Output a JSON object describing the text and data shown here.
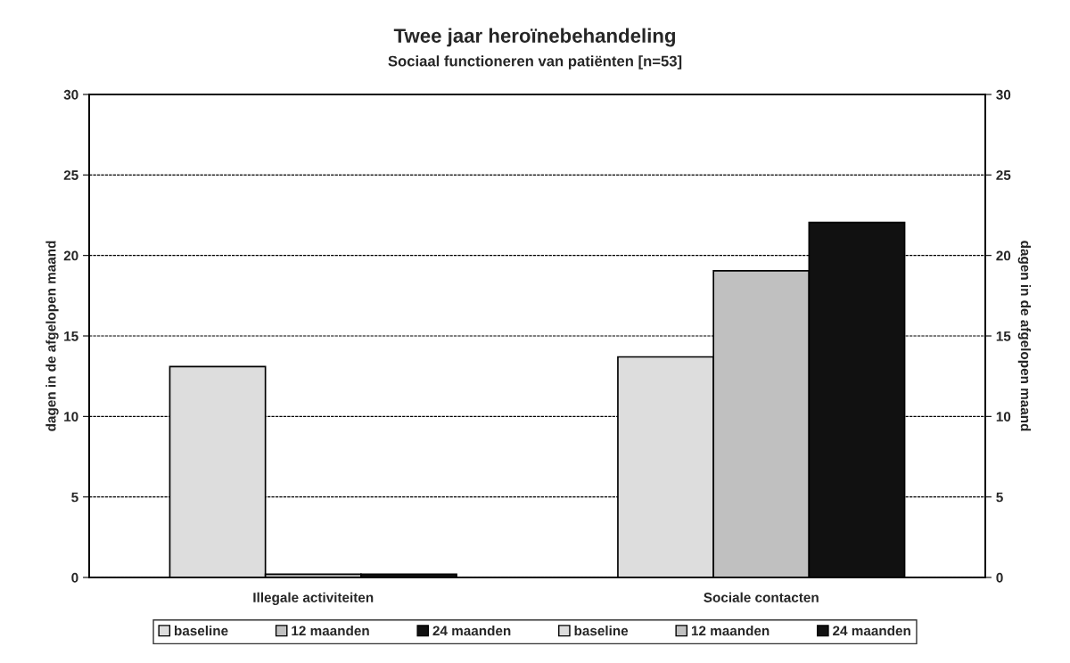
{
  "chart_data": {
    "type": "bar",
    "title": "Twee jaar heroïnebehandeling",
    "subtitle": "Sociaal functioneren van patiënten [n=53]",
    "ylabel": "dagen in de afgelopen maand",
    "y2label": "dagen in de afgelopen maand",
    "categories": [
      "Illegale activiteiten",
      "Sociale contacten"
    ],
    "series": [
      {
        "name": "baseline",
        "color": "#dddddd",
        "values": [
          13.1,
          null
        ]
      },
      {
        "name": "12 maanden",
        "color": "#c0c0c0",
        "values": [
          0.2,
          null
        ]
      },
      {
        "name": "24 maanden",
        "color": "#111111",
        "values": [
          0.2,
          null
        ]
      },
      {
        "name": "baseline",
        "color": "#dddddd",
        "values": [
          null,
          13.7
        ]
      },
      {
        "name": "12 maanden",
        "color": "#c0c0c0",
        "values": [
          null,
          19.05
        ]
      },
      {
        "name": "24 maanden",
        "color": "#111111",
        "values": [
          null,
          22.05
        ]
      }
    ],
    "ylim": [
      0,
      30
    ],
    "yticks": [
      0,
      5,
      10,
      15,
      20,
      25,
      30
    ],
    "y2lim": [
      0,
      30
    ],
    "y2ticks": [
      0,
      5,
      10,
      15,
      20,
      25,
      30
    ],
    "grid": "y",
    "legend": "bottom"
  }
}
